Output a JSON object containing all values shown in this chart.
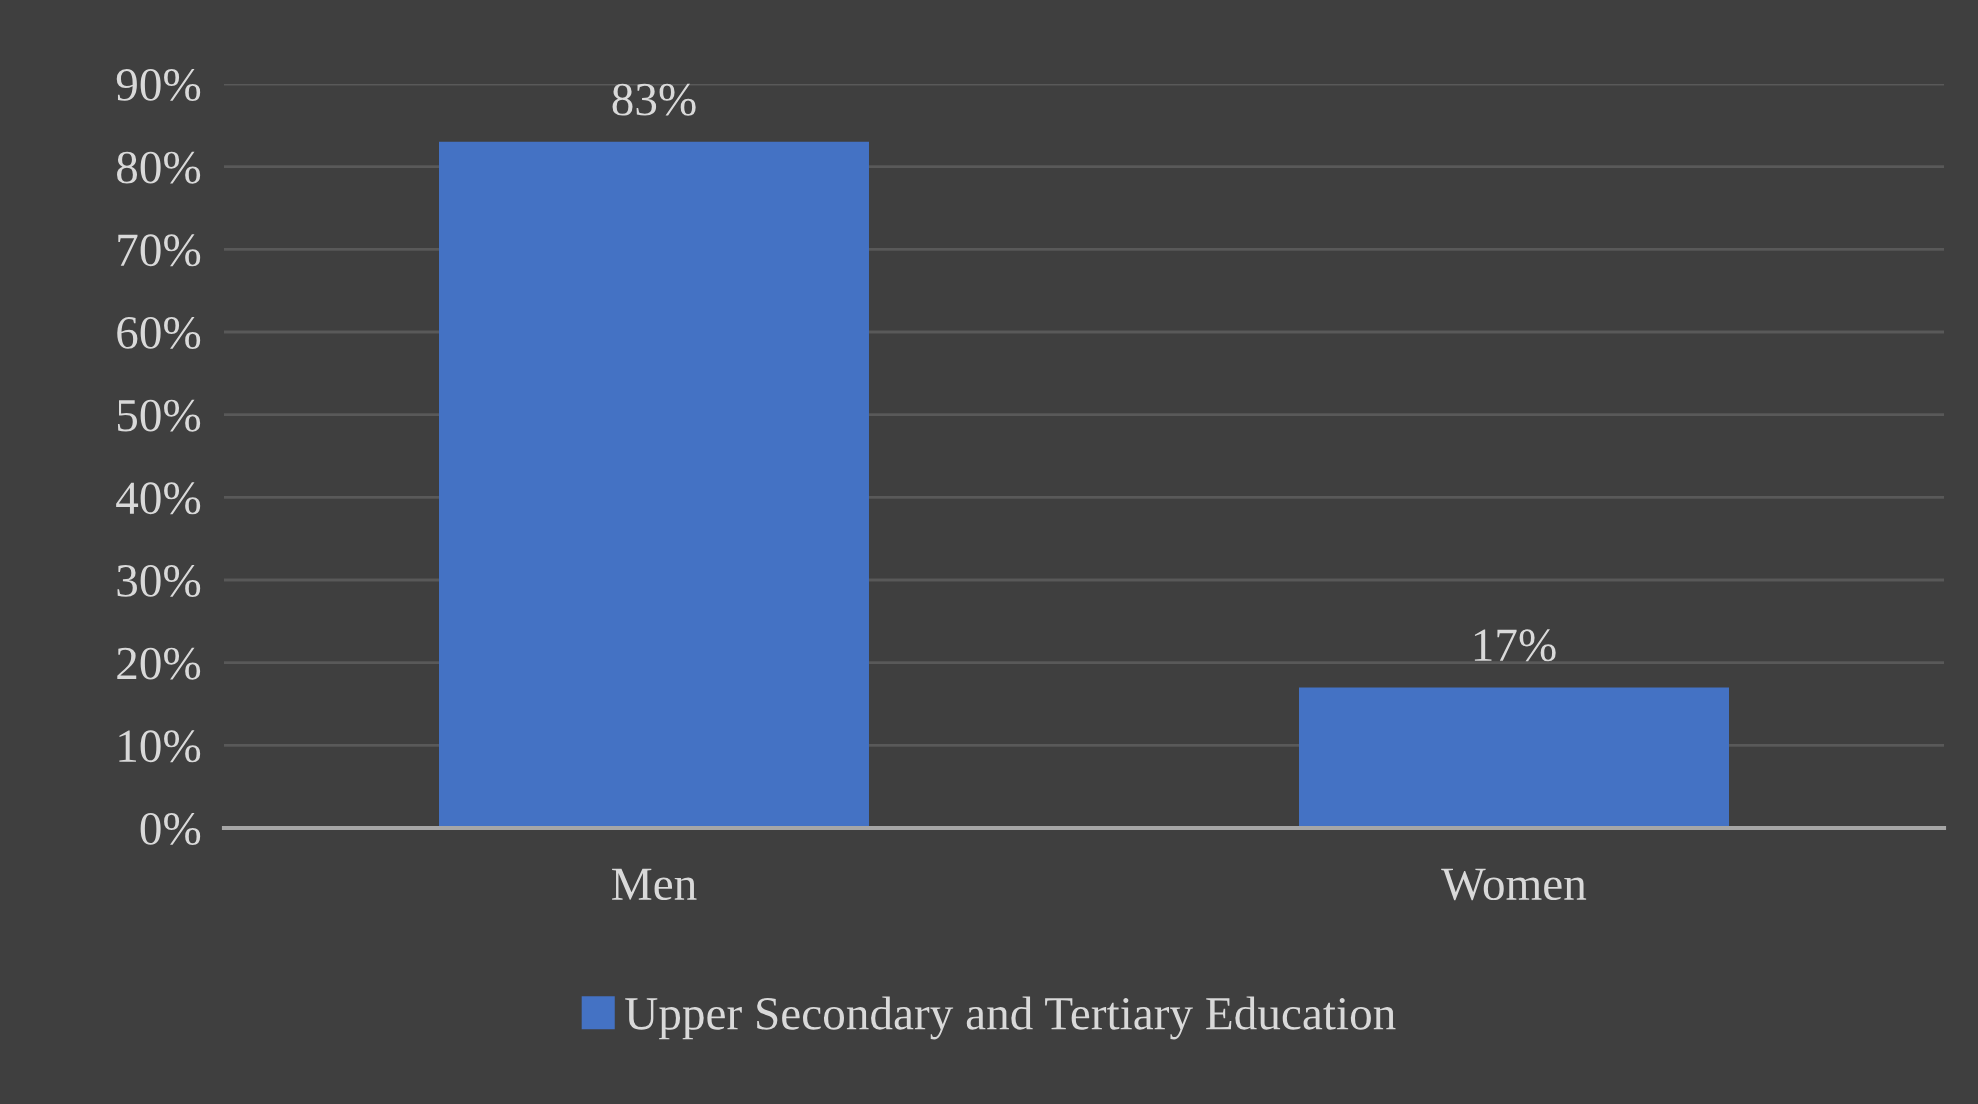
{
  "chart_data": {
    "type": "bar",
    "categories": [
      "Men",
      "Women"
    ],
    "series": [
      {
        "name": "Upper Secondary and Tertiary Education",
        "color": "#4472c4",
        "values": [
          83,
          17
        ],
        "value_labels": [
          "83%",
          "17%"
        ]
      }
    ],
    "ylim": [
      0,
      90
    ],
    "yticks": [
      {
        "value": 0,
        "label": "0%"
      },
      {
        "value": 10,
        "label": "10%"
      },
      {
        "value": 20,
        "label": "20%"
      },
      {
        "value": 30,
        "label": "30%"
      },
      {
        "value": 40,
        "label": "40%"
      },
      {
        "value": 50,
        "label": "50%"
      },
      {
        "value": 60,
        "label": "60%"
      },
      {
        "value": 70,
        "label": "70%"
      },
      {
        "value": 80,
        "label": "80%"
      },
      {
        "value": 90,
        "label": "90%"
      }
    ],
    "grid": "y",
    "legend": "bottom"
  }
}
